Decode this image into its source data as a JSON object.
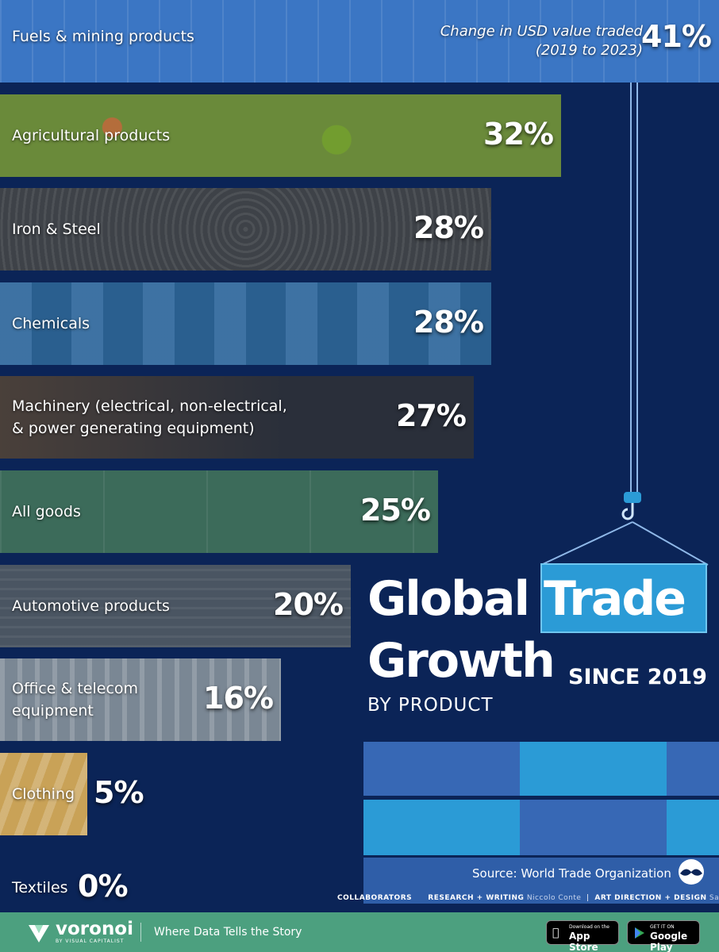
{
  "header_note": {
    "line1": "Change in USD value traded",
    "line2": "(2019 to 2023)"
  },
  "chart_data": {
    "type": "bar",
    "orientation": "horizontal",
    "title": "Global Trade Growth SINCE 2019 BY PRODUCT",
    "categories": [
      "Fuels & mining products",
      "Agricultural products",
      "Iron & Steel",
      "Chemicals",
      "Machinery (electrical, non-electrical,\n& power generating equipment)",
      "All goods",
      "Automotive products",
      "Office & telecom\nequipment",
      "Clothing",
      "Textiles"
    ],
    "values": [
      41,
      32,
      28,
      28,
      27,
      25,
      20,
      16,
      5,
      0
    ],
    "value_labels": [
      "41%",
      "32%",
      "28%",
      "28%",
      "27%",
      "25%",
      "20%",
      "16%",
      "5%",
      "0%"
    ],
    "colors": [
      "#3b76c4",
      "#6a8a3a",
      "#3e4248",
      "#2a5f8f",
      "#2a2f3a",
      "#3c6b5a",
      "#4a5562",
      "#7a8794",
      "#c9a257",
      "#0b2457"
    ],
    "xlim": [
      0,
      41
    ]
  },
  "title": {
    "word1": "Global",
    "word2": "Trade",
    "word3": "Growth",
    "since": "SINCE 2019",
    "by": "BY PRODUCT"
  },
  "source": "Source: World Trade Organization",
  "collaborators": {
    "heading": "COLLABORATORS",
    "research_label": "RESEARCH + WRITING",
    "research_name": "Niccolo Conte",
    "art_label": "ART DIRECTION + DESIGN",
    "art_name": "Sabrina Lam"
  },
  "footer": {
    "brand": "voronoi",
    "brand_sub": "BY VISUAL CAPITALIST",
    "tagline": "Where Data Tells the Story",
    "appstore_small": "Download on the",
    "appstore_big": "App Store",
    "gplay_small": "GET IT ON",
    "gplay_big": "Google Play"
  },
  "theme": {
    "background": "#0b2457",
    "accent": "#2b9bd6",
    "footer": "#4ca07f"
  }
}
